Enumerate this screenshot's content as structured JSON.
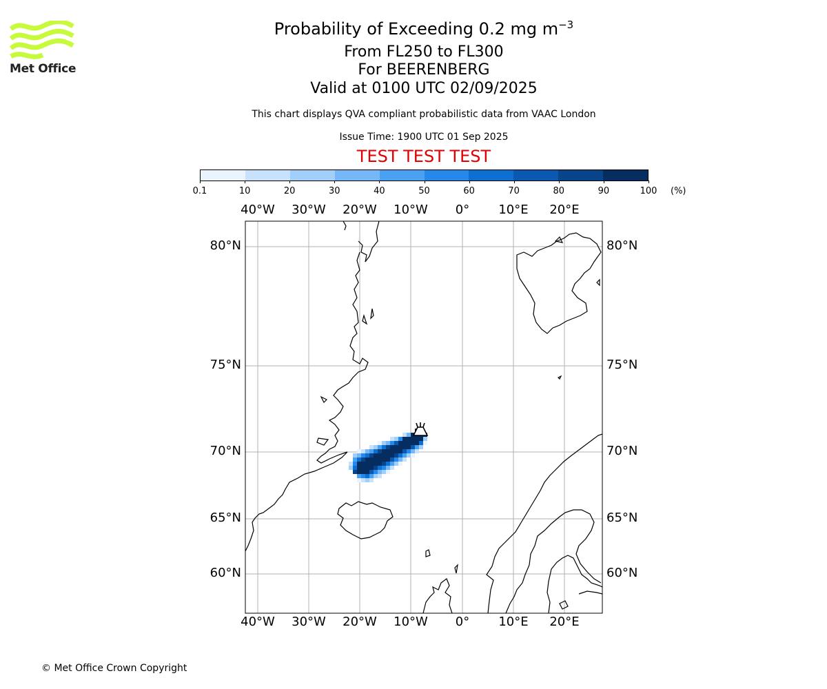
{
  "logo": {
    "text": "Met Office",
    "wave_color": "#c8fa3c"
  },
  "header": {
    "title_line1_base": "Probability of Exceeding 0.2 mg m",
    "title_line1_sup": "−3",
    "title_line2": "From FL250 to FL300",
    "title_line3": "For BEERENBERG",
    "title_line4": "Valid at 0100 UTC 02/09/2025",
    "subtitle": "This chart displays QVA compliant probabilistic data from VAAC London",
    "issue_time": "Issue Time: 1900 UTC 01 Sep 2025",
    "test_banner": "TEST TEST TEST",
    "test_color": "#e00000"
  },
  "colorbar": {
    "ticks": [
      "0.1",
      "10",
      "20",
      "30",
      "40",
      "50",
      "60",
      "70",
      "80",
      "90",
      "100"
    ],
    "unit": "(%)",
    "colors": [
      "#eaf4ff",
      "#c8e2fc",
      "#a2cffa",
      "#76b8f7",
      "#4aa1f2",
      "#2489ea",
      "#0d6fd0",
      "#0a58b0",
      "#07448a",
      "#052d60"
    ]
  },
  "map": {
    "lon_labels": [
      "40°W",
      "30°W",
      "20°W",
      "10°W",
      "0°",
      "10°E",
      "20°E"
    ],
    "lat_labels": [
      "80°N",
      "75°N",
      "70°N",
      "65°N",
      "60°N"
    ],
    "volcano": "BEERENBERG",
    "plume_probability_range_percent": [
      0.1,
      100
    ]
  },
  "footer": {
    "copyright": "© Met Office Crown Copyright"
  }
}
